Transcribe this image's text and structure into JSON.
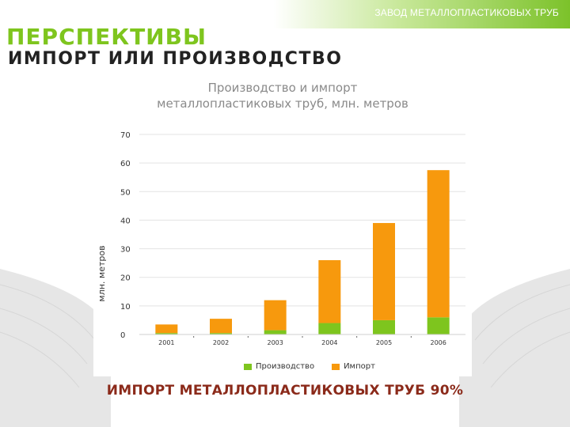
{
  "header": {
    "company": "ЗАВОД МЕТАЛЛОПЛАСТИКОВЫХ ТРУБ",
    "title": "ПЕРСПЕКТИВЫ",
    "subtitle": "ИМПОРТ ИЛИ ПРОИЗВОДСТВО"
  },
  "footer": {
    "text": "ИМПОРТ МЕТАЛЛОПЛАСТИКОВЫХ ТРУБ 90%"
  },
  "colors": {
    "accent": "#7ec51e",
    "production": "#7ec51e",
    "import": "#f7990d",
    "footer_text": "#8b2a1a"
  },
  "chart_data": {
    "type": "bar",
    "stacked": true,
    "title_line1": "Производство и импорт",
    "title_line2": "металлопластиковых труб, млн. метров",
    "xlabel": "",
    "ylabel": "млн. метров",
    "ylim": [
      0,
      70
    ],
    "yticks": [
      0,
      10,
      20,
      30,
      40,
      50,
      60,
      70
    ],
    "grid": true,
    "legend_position": "bottom",
    "categories": [
      "2001",
      "2002",
      "2003",
      "2004",
      "2005",
      "2006"
    ],
    "series": [
      {
        "name": "Производство",
        "color": "#7ec51e",
        "values": [
          0.5,
          0.5,
          1.5,
          4,
          5,
          6
        ]
      },
      {
        "name": "Импорт",
        "color": "#f7990d",
        "values": [
          3,
          5,
          10.5,
          22,
          34,
          51.5
        ]
      }
    ]
  }
}
